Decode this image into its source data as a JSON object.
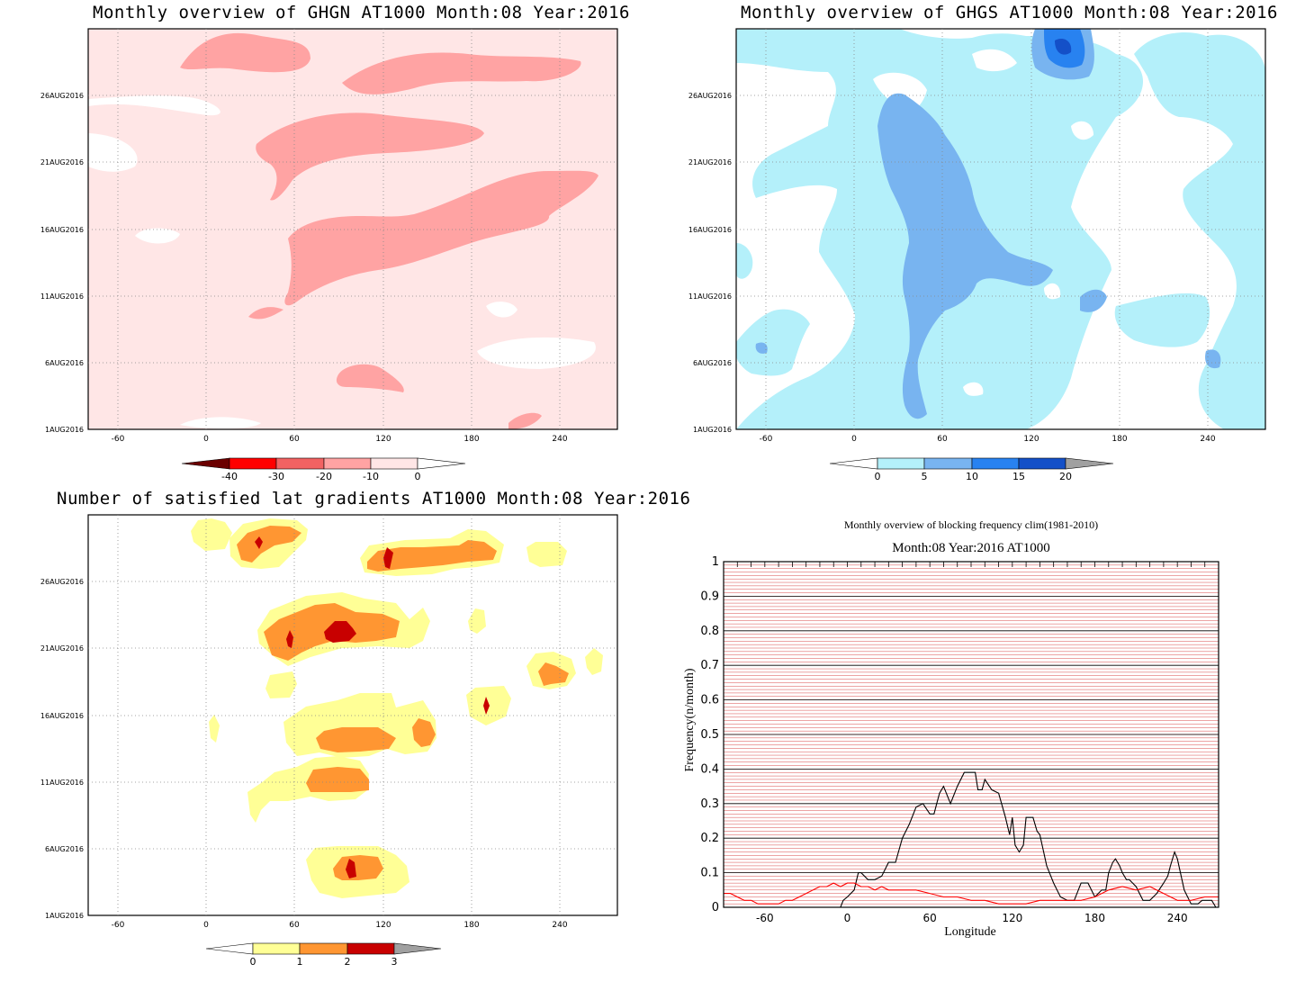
{
  "panels": {
    "ghgn": {
      "title": "Monthly overview of GHGN AT1000 Month:08 Year:2016",
      "colorbar": {
        "labels": [
          "-40",
          "-30",
          "-20",
          "-10",
          "0"
        ],
        "colors": [
          "#6b0000",
          "#ff0000",
          "#f26262",
          "#ffa3a3",
          "#ffe6e6",
          "#ffffff"
        ]
      }
    },
    "ghgs": {
      "title": "Monthly overview of GHGS AT1000 Month:08 Year:2016",
      "colorbar": {
        "labels": [
          "0",
          "5",
          "10",
          "15",
          "20"
        ],
        "colors": [
          "#ffffff",
          "#b4f0fa",
          "#78b4f0",
          "#2882f0",
          "#1450c8",
          "#a0a0a0"
        ]
      }
    },
    "lat": {
      "title": "Number of satisfied lat gradients AT1000 Month:08 Year:2016",
      "colorbar": {
        "labels": [
          "0",
          "1",
          "2",
          "3"
        ],
        "colors": [
          "#ffffff",
          "#ffff96",
          "#ff9632",
          "#c80000",
          "#a0a0a0"
        ]
      }
    },
    "freq": {
      "title": "Monthly overview of blocking frequency clim(1981-2010)",
      "subtitle": "Month:08 Year:2016  AT1000"
    }
  },
  "map_axes": {
    "x_ticks": [
      "-60",
      "0",
      "60",
      "120",
      "180",
      "240"
    ],
    "y_ticks": [
      "1AUG2016",
      "6AUG2016",
      "11AUG2016",
      "16AUG2016",
      "21AUG2016",
      "26AUG2016"
    ]
  },
  "chart_data": {
    "type": "line",
    "title": "Monthly overview of blocking frequency clim(1981-2010)",
    "subtitle": "Month:08 Year:2016  AT1000",
    "xlabel": "Longitude",
    "ylabel": "Frequency(n/month)",
    "xlim": [
      -90,
      270
    ],
    "ylim": [
      0,
      1
    ],
    "x_ticks": [
      -60,
      0,
      60,
      120,
      180,
      240
    ],
    "y_ticks": [
      0,
      0.1,
      0.2,
      0.3,
      0.4,
      0.5,
      0.6,
      0.7,
      0.8,
      0.9,
      1
    ],
    "y_tick_labels": [
      "0",
      "0.1",
      "0.2",
      "0.3",
      "0.4",
      "0.5",
      "0.6",
      "0.7",
      "0.8",
      "0.9",
      "1"
    ],
    "grid": true,
    "series": [
      {
        "color": "#000000",
        "x": [
          -90,
          -5,
          -3,
          0,
          5,
          8,
          10,
          15,
          20,
          25,
          30,
          35,
          40,
          45,
          50,
          55,
          60,
          63,
          65,
          67,
          70,
          75,
          80,
          85,
          90,
          93,
          95,
          98,
          100,
          105,
          110,
          115,
          118,
          120,
          122,
          125,
          128,
          130,
          135,
          138,
          140,
          145,
          150,
          155,
          160,
          165,
          170,
          175,
          180,
          185,
          188,
          190,
          193,
          195,
          198,
          200,
          203,
          205,
          210,
          215,
          220,
          225,
          230,
          233,
          235,
          238,
          240,
          245,
          250,
          255,
          258,
          260,
          265,
          268,
          270
        ],
        "y": [
          0,
          0,
          0.02,
          0.03,
          0.05,
          0.1,
          0.1,
          0.08,
          0.08,
          0.09,
          0.13,
          0.13,
          0.2,
          0.24,
          0.29,
          0.3,
          0.27,
          0.27,
          0.3,
          0.33,
          0.35,
          0.3,
          0.35,
          0.39,
          0.39,
          0.39,
          0.34,
          0.34,
          0.37,
          0.34,
          0.33,
          0.26,
          0.21,
          0.26,
          0.18,
          0.16,
          0.18,
          0.26,
          0.26,
          0.22,
          0.21,
          0.12,
          0.07,
          0.03,
          0.02,
          0.02,
          0.07,
          0.07,
          0.03,
          0.05,
          0.05,
          0.1,
          0.13,
          0.14,
          0.12,
          0.1,
          0.08,
          0.08,
          0.06,
          0.02,
          0.02,
          0.04,
          0.07,
          0.09,
          0.12,
          0.16,
          0.14,
          0.05,
          0.01,
          0.01,
          0.02,
          0.02,
          0.02,
          0,
          0
        ]
      },
      {
        "color": "#ff0000",
        "x": [
          -90,
          -85,
          -80,
          -75,
          -70,
          -65,
          -60,
          -55,
          -50,
          -45,
          -40,
          -35,
          -30,
          -25,
          -20,
          -15,
          -10,
          -5,
          0,
          5,
          10,
          15,
          20,
          25,
          30,
          40,
          50,
          60,
          70,
          80,
          90,
          100,
          110,
          120,
          130,
          140,
          150,
          160,
          170,
          180,
          190,
          200,
          210,
          220,
          230,
          240,
          250,
          260,
          270
        ],
        "y": [
          0.04,
          0.04,
          0.03,
          0.02,
          0.02,
          0.01,
          0.01,
          0.01,
          0.01,
          0.02,
          0.02,
          0.03,
          0.04,
          0.05,
          0.06,
          0.06,
          0.07,
          0.06,
          0.07,
          0.07,
          0.06,
          0.06,
          0.05,
          0.06,
          0.05,
          0.05,
          0.05,
          0.04,
          0.03,
          0.03,
          0.02,
          0.02,
          0.01,
          0.01,
          0.01,
          0.02,
          0.02,
          0.02,
          0.02,
          0.03,
          0.05,
          0.06,
          0.05,
          0.06,
          0.04,
          0.02,
          0.02,
          0.03,
          0.03
        ]
      }
    ]
  }
}
